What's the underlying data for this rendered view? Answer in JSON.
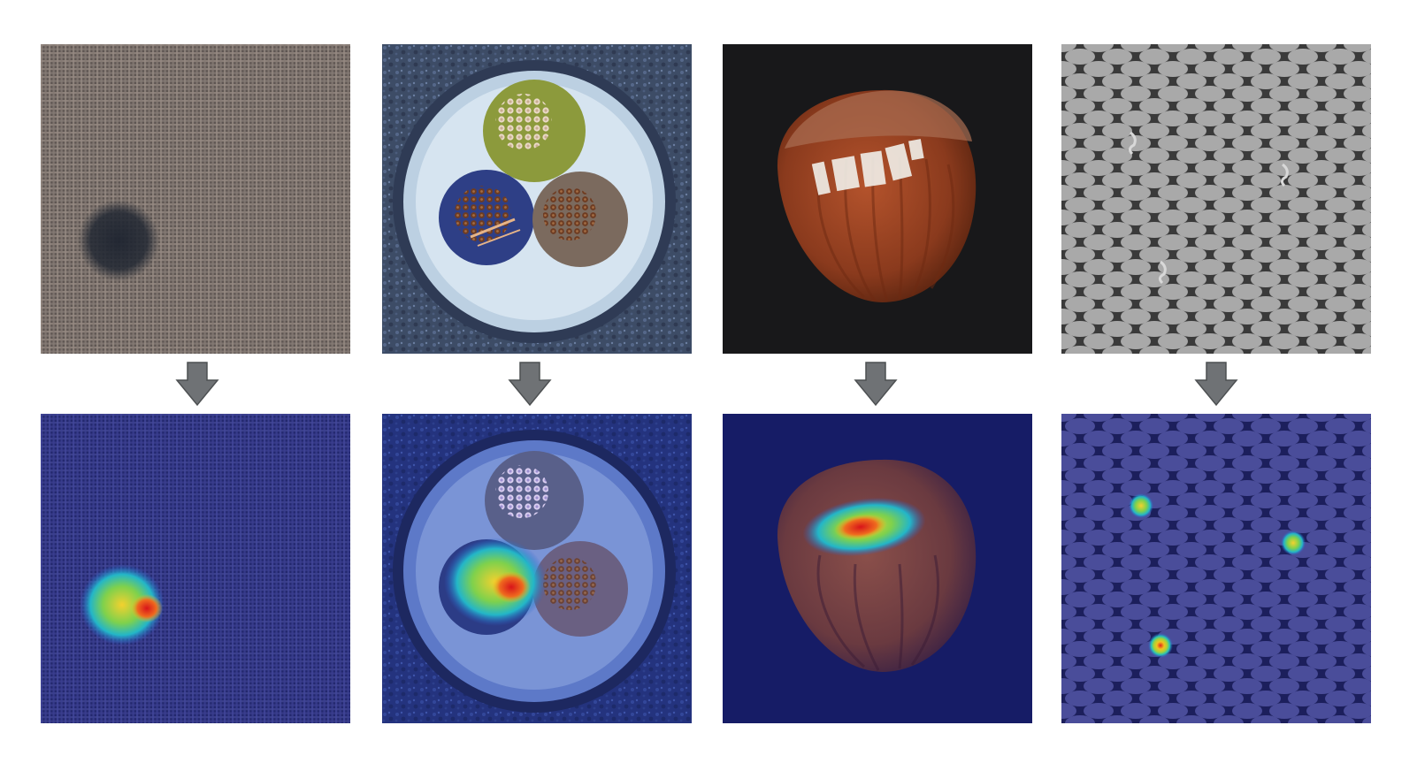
{
  "columns": [
    {
      "category": "carpet",
      "defect": "color-stain"
    },
    {
      "category": "cable",
      "defect": "bent-wire"
    },
    {
      "category": "hazelnut",
      "defect": "print"
    },
    {
      "category": "grid",
      "defect": "broken-wires"
    }
  ],
  "colors": {
    "arrow": "#6f7275",
    "heatmap_low": "#2a3590",
    "heatmap_mid": "#28c9b0",
    "heatmap_high": "#e1261c",
    "background": "#ffffff"
  },
  "icons": {
    "arrow": "down-arrow-icon"
  }
}
